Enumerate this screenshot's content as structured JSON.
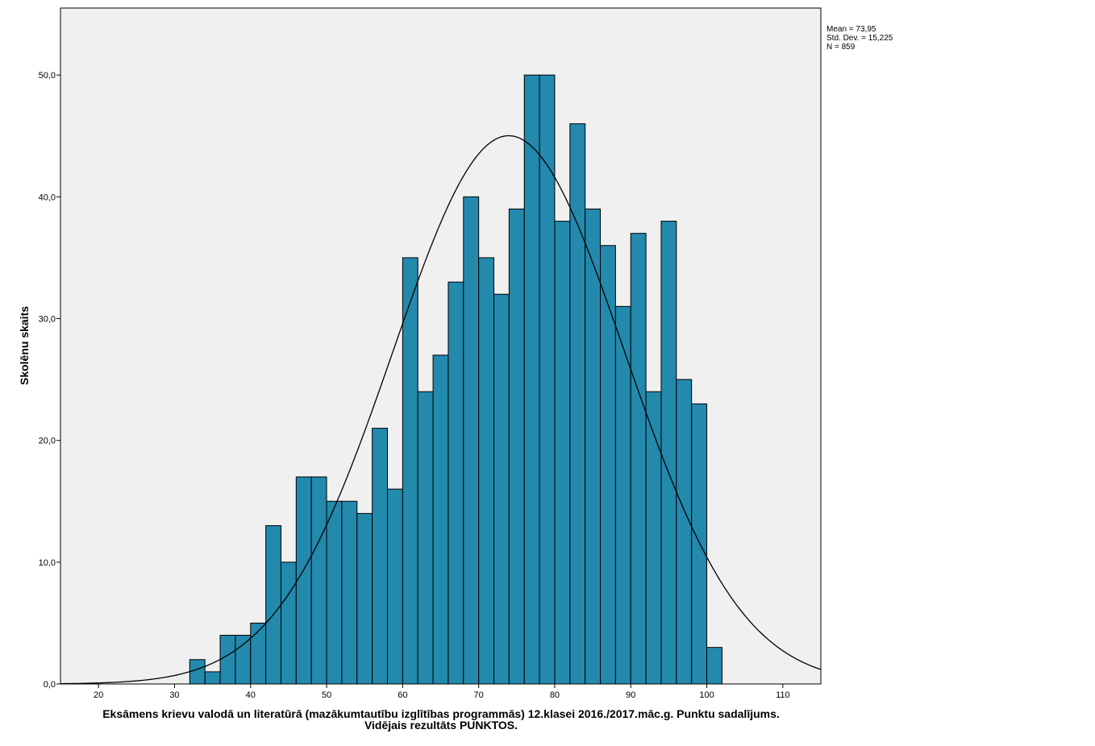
{
  "chart_data": {
    "type": "bar",
    "subtype": "histogram",
    "xlabel_line1": "Eksāmens krievu valodā un literatūrā (mazākumtautību izglītības programmās) 12.klasei 2016./2017.māc.g. Punktu sadalījums.",
    "xlabel_line2": "Vidējais rezultāts PUNKTOS.",
    "ylabel": "Skolēnu skaits",
    "xlim": [
      15,
      115
    ],
    "ylim": [
      0,
      55.5
    ],
    "xticks": [
      20,
      30,
      40,
      50,
      60,
      70,
      80,
      90,
      100,
      110
    ],
    "yticks": [
      0,
      10,
      20,
      30,
      40,
      50
    ],
    "ytick_labels": [
      "0,0",
      "10,0",
      "20,0",
      "30,0",
      "40,0",
      "50,0"
    ],
    "bin_width": 2,
    "bin_starts": [
      32,
      34,
      36,
      38,
      40,
      42,
      44,
      46,
      48,
      50,
      52,
      54,
      56,
      58,
      60,
      62,
      64,
      66,
      68,
      70,
      72,
      74,
      76,
      78,
      80,
      82,
      84,
      86,
      88,
      90,
      92,
      94,
      96,
      98,
      100
    ],
    "values": [
      2,
      1,
      4,
      4,
      5,
      13,
      10,
      17,
      17,
      15,
      15,
      14,
      21,
      16,
      35,
      24,
      27,
      33,
      40,
      35,
      32,
      39,
      50,
      50,
      38,
      46,
      39,
      36,
      31,
      37,
      24,
      38,
      25,
      23,
      3
    ],
    "normal_curve": {
      "mean": 73.95,
      "sd": 15.225,
      "n": 859
    },
    "bar_color": "#2389ad",
    "plot_background": "#f0f0f0",
    "grid": false
  },
  "stats": {
    "mean_text": "Mean = 73,95",
    "sd_text": "Std. Dev. = 15,225",
    "n_text": "N = 859"
  }
}
